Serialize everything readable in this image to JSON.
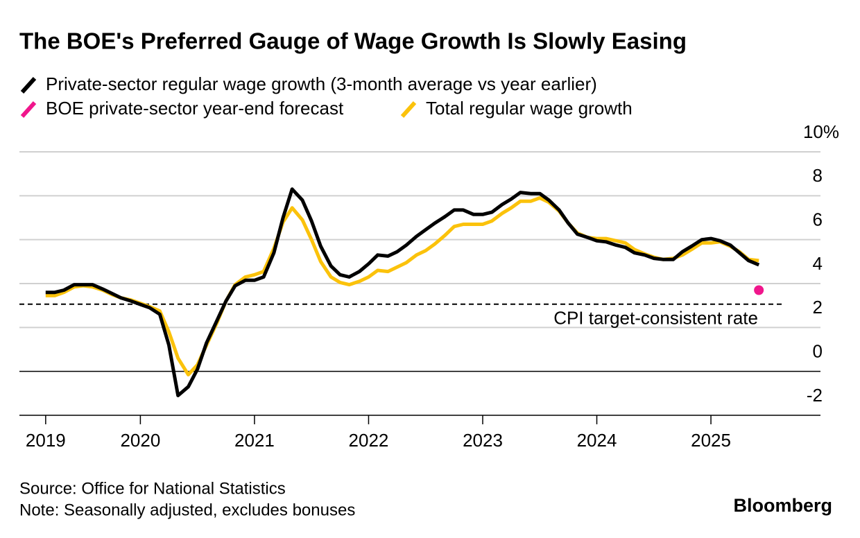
{
  "chart_data": {
    "type": "line",
    "title": "The BOE's Preferred Gauge of Wage Growth Is Slowly Easing",
    "source": "Source: Office for National Statistics",
    "note": "Note: Seasonally adjusted, excludes bonuses",
    "brand": "Bloomberg",
    "x": [
      2019.17,
      2019.25,
      2019.33,
      2019.42,
      2019.5,
      2019.58,
      2019.67,
      2019.75,
      2019.83,
      2019.92,
      2020,
      2020.08,
      2020.17,
      2020.25,
      2020.33,
      2020.42,
      2020.5,
      2020.58,
      2020.67,
      2020.75,
      2020.83,
      2020.92,
      2021,
      2021.08,
      2021.17,
      2021.25,
      2021.33,
      2021.42,
      2021.5,
      2021.58,
      2021.67,
      2021.75,
      2021.83,
      2021.92,
      2022,
      2022.08,
      2022.17,
      2022.25,
      2022.33,
      2022.42,
      2022.5,
      2022.58,
      2022.67,
      2022.75,
      2022.83,
      2022.92,
      2023,
      2023.08,
      2023.17,
      2023.25,
      2023.33,
      2023.42,
      2023.5,
      2023.58,
      2023.67,
      2023.75,
      2023.83,
      2023.92,
      2024,
      2024.08,
      2024.17,
      2024.25,
      2024.33,
      2024.42,
      2024.5,
      2024.58,
      2024.67,
      2024.75,
      2024.83,
      2024.92,
      2025,
      2025.08,
      2025.17,
      2025.25,
      2025.33,
      2025.42
    ],
    "series": [
      {
        "name": "Private-sector regular wage growth (3-month average vs year earlier)",
        "color": "#000000",
        "style": "line",
        "values": [
          3.6,
          3.6,
          3.7,
          3.95,
          3.95,
          3.95,
          3.75,
          3.55,
          3.35,
          3.2,
          3.05,
          2.9,
          2.6,
          1.2,
          -1.1,
          -0.7,
          0.1,
          1.3,
          2.3,
          3.2,
          3.9,
          4.15,
          4.15,
          4.3,
          5.4,
          7.0,
          8.3,
          7.8,
          6.85,
          5.7,
          4.8,
          4.4,
          4.3,
          4.55,
          4.9,
          5.3,
          5.25,
          5.45,
          5.75,
          6.15,
          6.45,
          6.75,
          7.05,
          7.35,
          7.35,
          7.15,
          7.15,
          7.25,
          7.6,
          7.85,
          8.15,
          8.1,
          8.1,
          7.8,
          7.35,
          6.75,
          6.25,
          6.1,
          5.95,
          5.9,
          5.75,
          5.65,
          5.4,
          5.3,
          5.15,
          5.1,
          5.1,
          5.45,
          5.7,
          6.0,
          6.05,
          5.95,
          5.75,
          5.4,
          5.05,
          4.85
        ]
      },
      {
        "name": "BOE private-sector year-end forecast",
        "color": "#f0168c",
        "style": "point",
        "x": [
          2025.42
        ],
        "values": [
          3.7
        ]
      },
      {
        "name": "Total regular wage growth",
        "color": "#fbc20b",
        "style": "line",
        "values": [
          3.45,
          3.45,
          3.6,
          3.85,
          3.9,
          3.85,
          3.7,
          3.5,
          3.35,
          3.25,
          3.1,
          2.95,
          2.75,
          1.8,
          0.6,
          -0.15,
          0.3,
          1.2,
          2.2,
          3.2,
          3.95,
          4.3,
          4.4,
          4.55,
          5.6,
          6.8,
          7.45,
          6.9,
          6.0,
          5.0,
          4.3,
          4.05,
          3.95,
          4.1,
          4.3,
          4.6,
          4.55,
          4.75,
          4.95,
          5.3,
          5.5,
          5.8,
          6.2,
          6.6,
          6.7,
          6.7,
          6.7,
          6.85,
          7.2,
          7.45,
          7.75,
          7.75,
          7.9,
          7.7,
          7.3,
          6.75,
          6.3,
          6.1,
          6.05,
          6.05,
          5.95,
          5.85,
          5.55,
          5.35,
          5.2,
          5.1,
          5.15,
          5.3,
          5.55,
          5.85,
          5.85,
          5.9,
          5.7,
          5.45,
          5.1,
          5.05
        ]
      }
    ],
    "reference_line": {
      "value": 3.06,
      "label": "CPI target-consistent rate",
      "style": "dashed"
    },
    "xlim": [
      2018.94,
      2025.96
    ],
    "xticks": [
      {
        "value": 2019.17,
        "label": "2019"
      },
      2020,
      2021,
      2022,
      2023,
      2024,
      2025
    ],
    "ylim": [
      -2,
      10
    ],
    "yticks": [
      {
        "value": 10,
        "label": "10%"
      },
      8,
      6,
      4,
      2,
      0,
      -2
    ],
    "grid": true
  }
}
